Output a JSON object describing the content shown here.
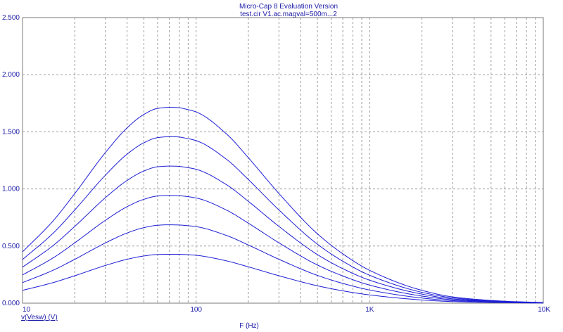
{
  "title": "Micro-Cap 8 Evaluation Version",
  "subtitle": "test.cir V1.ac.magval=500m...2",
  "chart_data": {
    "type": "line",
    "x_scale": "log",
    "xlabel": "F (Hz)",
    "ylabel": "v(Vesw) (V)",
    "xlim": [
      10,
      10000
    ],
    "ylim": [
      0,
      2.5
    ],
    "grid": true,
    "x_ticks": [
      {
        "value": 10,
        "label": "10"
      },
      {
        "value": 100,
        "label": "100"
      },
      {
        "value": 1000,
        "label": "1K"
      },
      {
        "value": 10000,
        "label": "10K"
      }
    ],
    "y_ticks": [
      {
        "value": 0,
        "label": "0.000"
      },
      {
        "value": 0.5,
        "label": "0.500"
      },
      {
        "value": 1.0,
        "label": "1.000"
      },
      {
        "value": 1.5,
        "label": "1.500"
      },
      {
        "value": 2.0,
        "label": "2.000"
      },
      {
        "value": 2.5,
        "label": "2.500"
      }
    ],
    "x": [
      10,
      15,
      20,
      30,
      40,
      50,
      60,
      70,
      77,
      90,
      100,
      150,
      200,
      300,
      500,
      700,
      1000,
      2000,
      3000,
      5000,
      7000,
      10000
    ],
    "series": [
      {
        "values": [
          0.112,
          0.18,
          0.24,
          0.33,
          0.384,
          0.413,
          0.426,
          0.428,
          0.428,
          0.424,
          0.419,
          0.37,
          0.318,
          0.24,
          0.152,
          0.108,
          0.072,
          0.028,
          0.014,
          0.006,
          0.003,
          0.001
        ]
      },
      {
        "values": [
          0.18,
          0.288,
          0.384,
          0.527,
          0.614,
          0.661,
          0.682,
          0.686,
          0.685,
          0.678,
          0.67,
          0.592,
          0.509,
          0.384,
          0.243,
          0.173,
          0.115,
          0.045,
          0.022,
          0.01,
          0.005,
          0.002
        ]
      },
      {
        "values": [
          0.247,
          0.396,
          0.528,
          0.725,
          0.844,
          0.909,
          0.938,
          0.943,
          0.942,
          0.932,
          0.921,
          0.814,
          0.7,
          0.528,
          0.334,
          0.238,
          0.158,
          0.062,
          0.03,
          0.014,
          0.007,
          0.003
        ]
      },
      {
        "values": [
          0.315,
          0.504,
          0.672,
          0.923,
          1.074,
          1.157,
          1.194,
          1.2,
          1.199,
          1.186,
          1.172,
          1.036,
          0.891,
          0.672,
          0.425,
          0.302,
          0.201,
          0.079,
          0.038,
          0.017,
          0.009,
          0.004
        ]
      },
      {
        "values": [
          0.382,
          0.612,
          0.816,
          1.12,
          1.304,
          1.404,
          1.449,
          1.457,
          1.456,
          1.44,
          1.423,
          1.258,
          1.082,
          0.816,
          0.516,
          0.367,
          0.244,
          0.095,
          0.047,
          0.02,
          0.011,
          0.005
        ]
      },
      {
        "values": [
          0.449,
          0.72,
          0.96,
          1.318,
          1.534,
          1.652,
          1.705,
          1.714,
          1.713,
          1.694,
          1.674,
          1.48,
          1.273,
          0.96,
          0.607,
          0.432,
          0.287,
          0.112,
          0.055,
          0.024,
          0.013,
          0.006
        ]
      }
    ]
  },
  "colors": {
    "text": "#1a1aa6",
    "trace": "#1f1fd6",
    "grid": "#9a9a9a",
    "frame": "#7a7a7a"
  }
}
